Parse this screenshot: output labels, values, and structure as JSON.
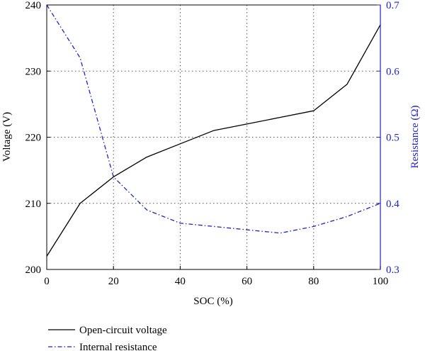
{
  "chart_data": {
    "type": "line",
    "xlabel": "SOC (%)",
    "xlim": [
      0,
      100
    ],
    "xticks": [
      0,
      20,
      40,
      60,
      80,
      100
    ],
    "grid": true,
    "legend_position": "bottom-left",
    "y_left": {
      "label": "Voltage (V)",
      "lim": [
        200,
        240
      ],
      "ticks": [
        200,
        210,
        220,
        230,
        240
      ],
      "color": "#000000"
    },
    "y_right": {
      "label": "Resistance (Ω)",
      "lim": [
        0.3,
        0.7
      ],
      "ticks": [
        "0.3",
        "0.4",
        "0.5",
        "0.6",
        "0.7"
      ],
      "color": "#1f23c4"
    },
    "series": [
      {
        "name": "Open-circuit voltage",
        "axis": "left",
        "style": "solid",
        "color": "#000000",
        "x": [
          0,
          10,
          20,
          30,
          40,
          50,
          60,
          70,
          80,
          90,
          100
        ],
        "y": [
          202,
          210,
          214,
          217,
          219,
          221,
          222,
          223,
          224,
          228,
          237
        ]
      },
      {
        "name": "Internal resistance",
        "axis": "right",
        "style": "dashdot",
        "color": "#1f23c4",
        "x": [
          0,
          10,
          20,
          30,
          40,
          50,
          60,
          70,
          80,
          90,
          100
        ],
        "y": [
          0.7,
          0.62,
          0.44,
          0.39,
          0.37,
          0.365,
          0.36,
          0.355,
          0.365,
          0.38,
          0.4
        ]
      }
    ]
  }
}
